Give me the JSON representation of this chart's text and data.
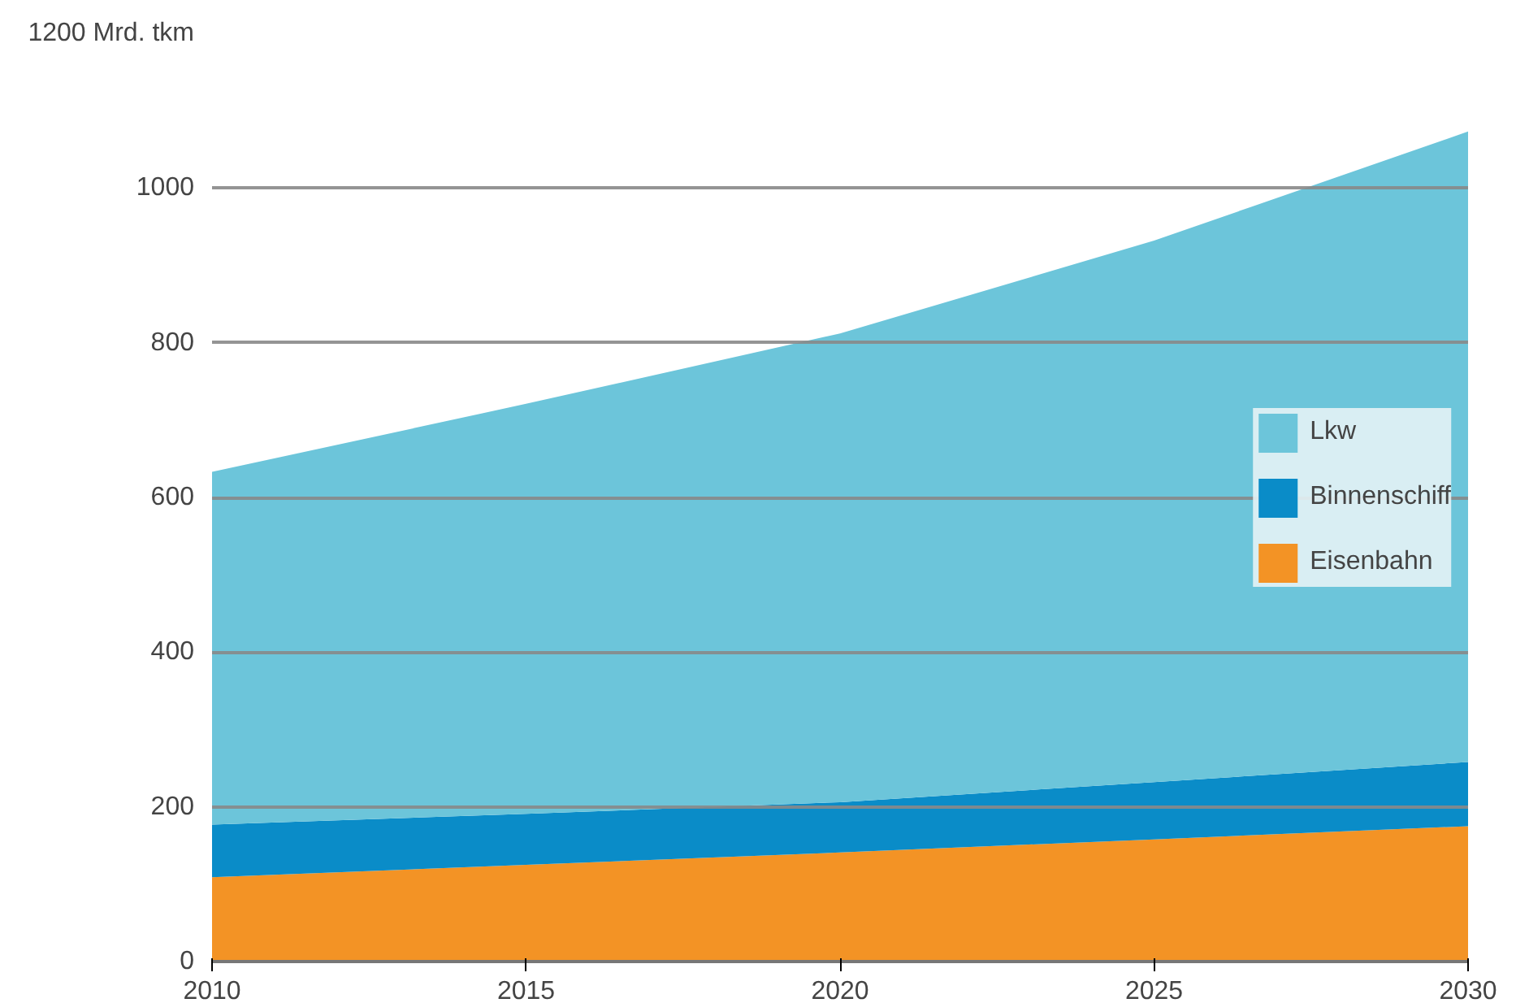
{
  "chart_data": {
    "type": "area",
    "stacked": true,
    "x": [
      2010,
      2015,
      2020,
      2025,
      2030
    ],
    "series": [
      {
        "name": "Eisenbahn",
        "color": "#f39325",
        "values": [
          109,
          125,
          141,
          158,
          175
        ]
      },
      {
        "name": "Binnenschiff",
        "color": "#0a8cc8",
        "values": [
          68,
          66,
          65,
          74,
          83
        ]
      },
      {
        "name": "Lkw",
        "color": "#6cc5da",
        "values": [
          456,
          530,
          606,
          700,
          815
        ]
      }
    ],
    "xlim": [
      2010,
      2030
    ],
    "xticks": [
      2010,
      2015,
      2020,
      2025,
      2030
    ],
    "ylim": [
      0,
      1200
    ],
    "yticks": [
      0,
      200,
      400,
      600,
      800,
      1000,
      {
        "value": 1200,
        "label": "1200 Mrd. tkm"
      }
    ],
    "grid": "y",
    "legend": "right"
  }
}
